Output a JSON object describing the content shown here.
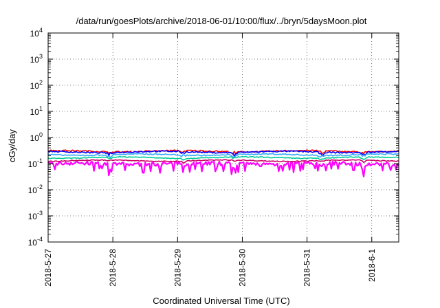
{
  "chart_data": {
    "type": "line",
    "title": "/data/run/goesPlots/archive/2018-06-01/10:00/flux/../bryn/5daysMoon.plot",
    "xlabel": "Coordinated Universal Time (UTC)",
    "ylabel": "cGy/day",
    "x_ticks": [
      "2018-5-27",
      "2018-5-28",
      "2018-5-29",
      "2018-5-30",
      "2018-5-31",
      "2018-6-1"
    ],
    "x_range": [
      "2018-05-27T00:00",
      "2018-06-01T10:00"
    ],
    "y_scale": "log",
    "ylim": [
      0.0001,
      10000
    ],
    "y_ticks": [
      {
        "base": "10",
        "exp": "-4"
      },
      {
        "base": "10",
        "exp": "-3"
      },
      {
        "base": "10",
        "exp": "-2"
      },
      {
        "base": "10",
        "exp": "-1"
      },
      {
        "base": "10",
        "exp": "0"
      },
      {
        "base": "10",
        "exp": "1"
      },
      {
        "base": "10",
        "exp": "2"
      },
      {
        "base": "10",
        "exp": "3"
      },
      {
        "base": "10",
        "exp": "4"
      }
    ],
    "grid": true,
    "series": [
      {
        "color": "#ff00ff",
        "level": 0.1,
        "noise": 0.35,
        "dip": 0.6
      },
      {
        "color": "#ff0000",
        "level": 0.3,
        "noise": 0.12,
        "dip": 0.35
      },
      {
        "color": "#0000ff",
        "level": 0.28,
        "noise": 0.12,
        "dip": 0.35
      },
      {
        "color": "#33aaff",
        "level": 0.22,
        "noise": 0.1,
        "dip": 0.3
      },
      {
        "color": "#00cc99",
        "level": 0.17,
        "noise": 0.08,
        "dip": 0.25
      },
      {
        "color": "#cc0066",
        "level": 0.13,
        "noise": 0.07,
        "dip": 0.2
      }
    ]
  }
}
